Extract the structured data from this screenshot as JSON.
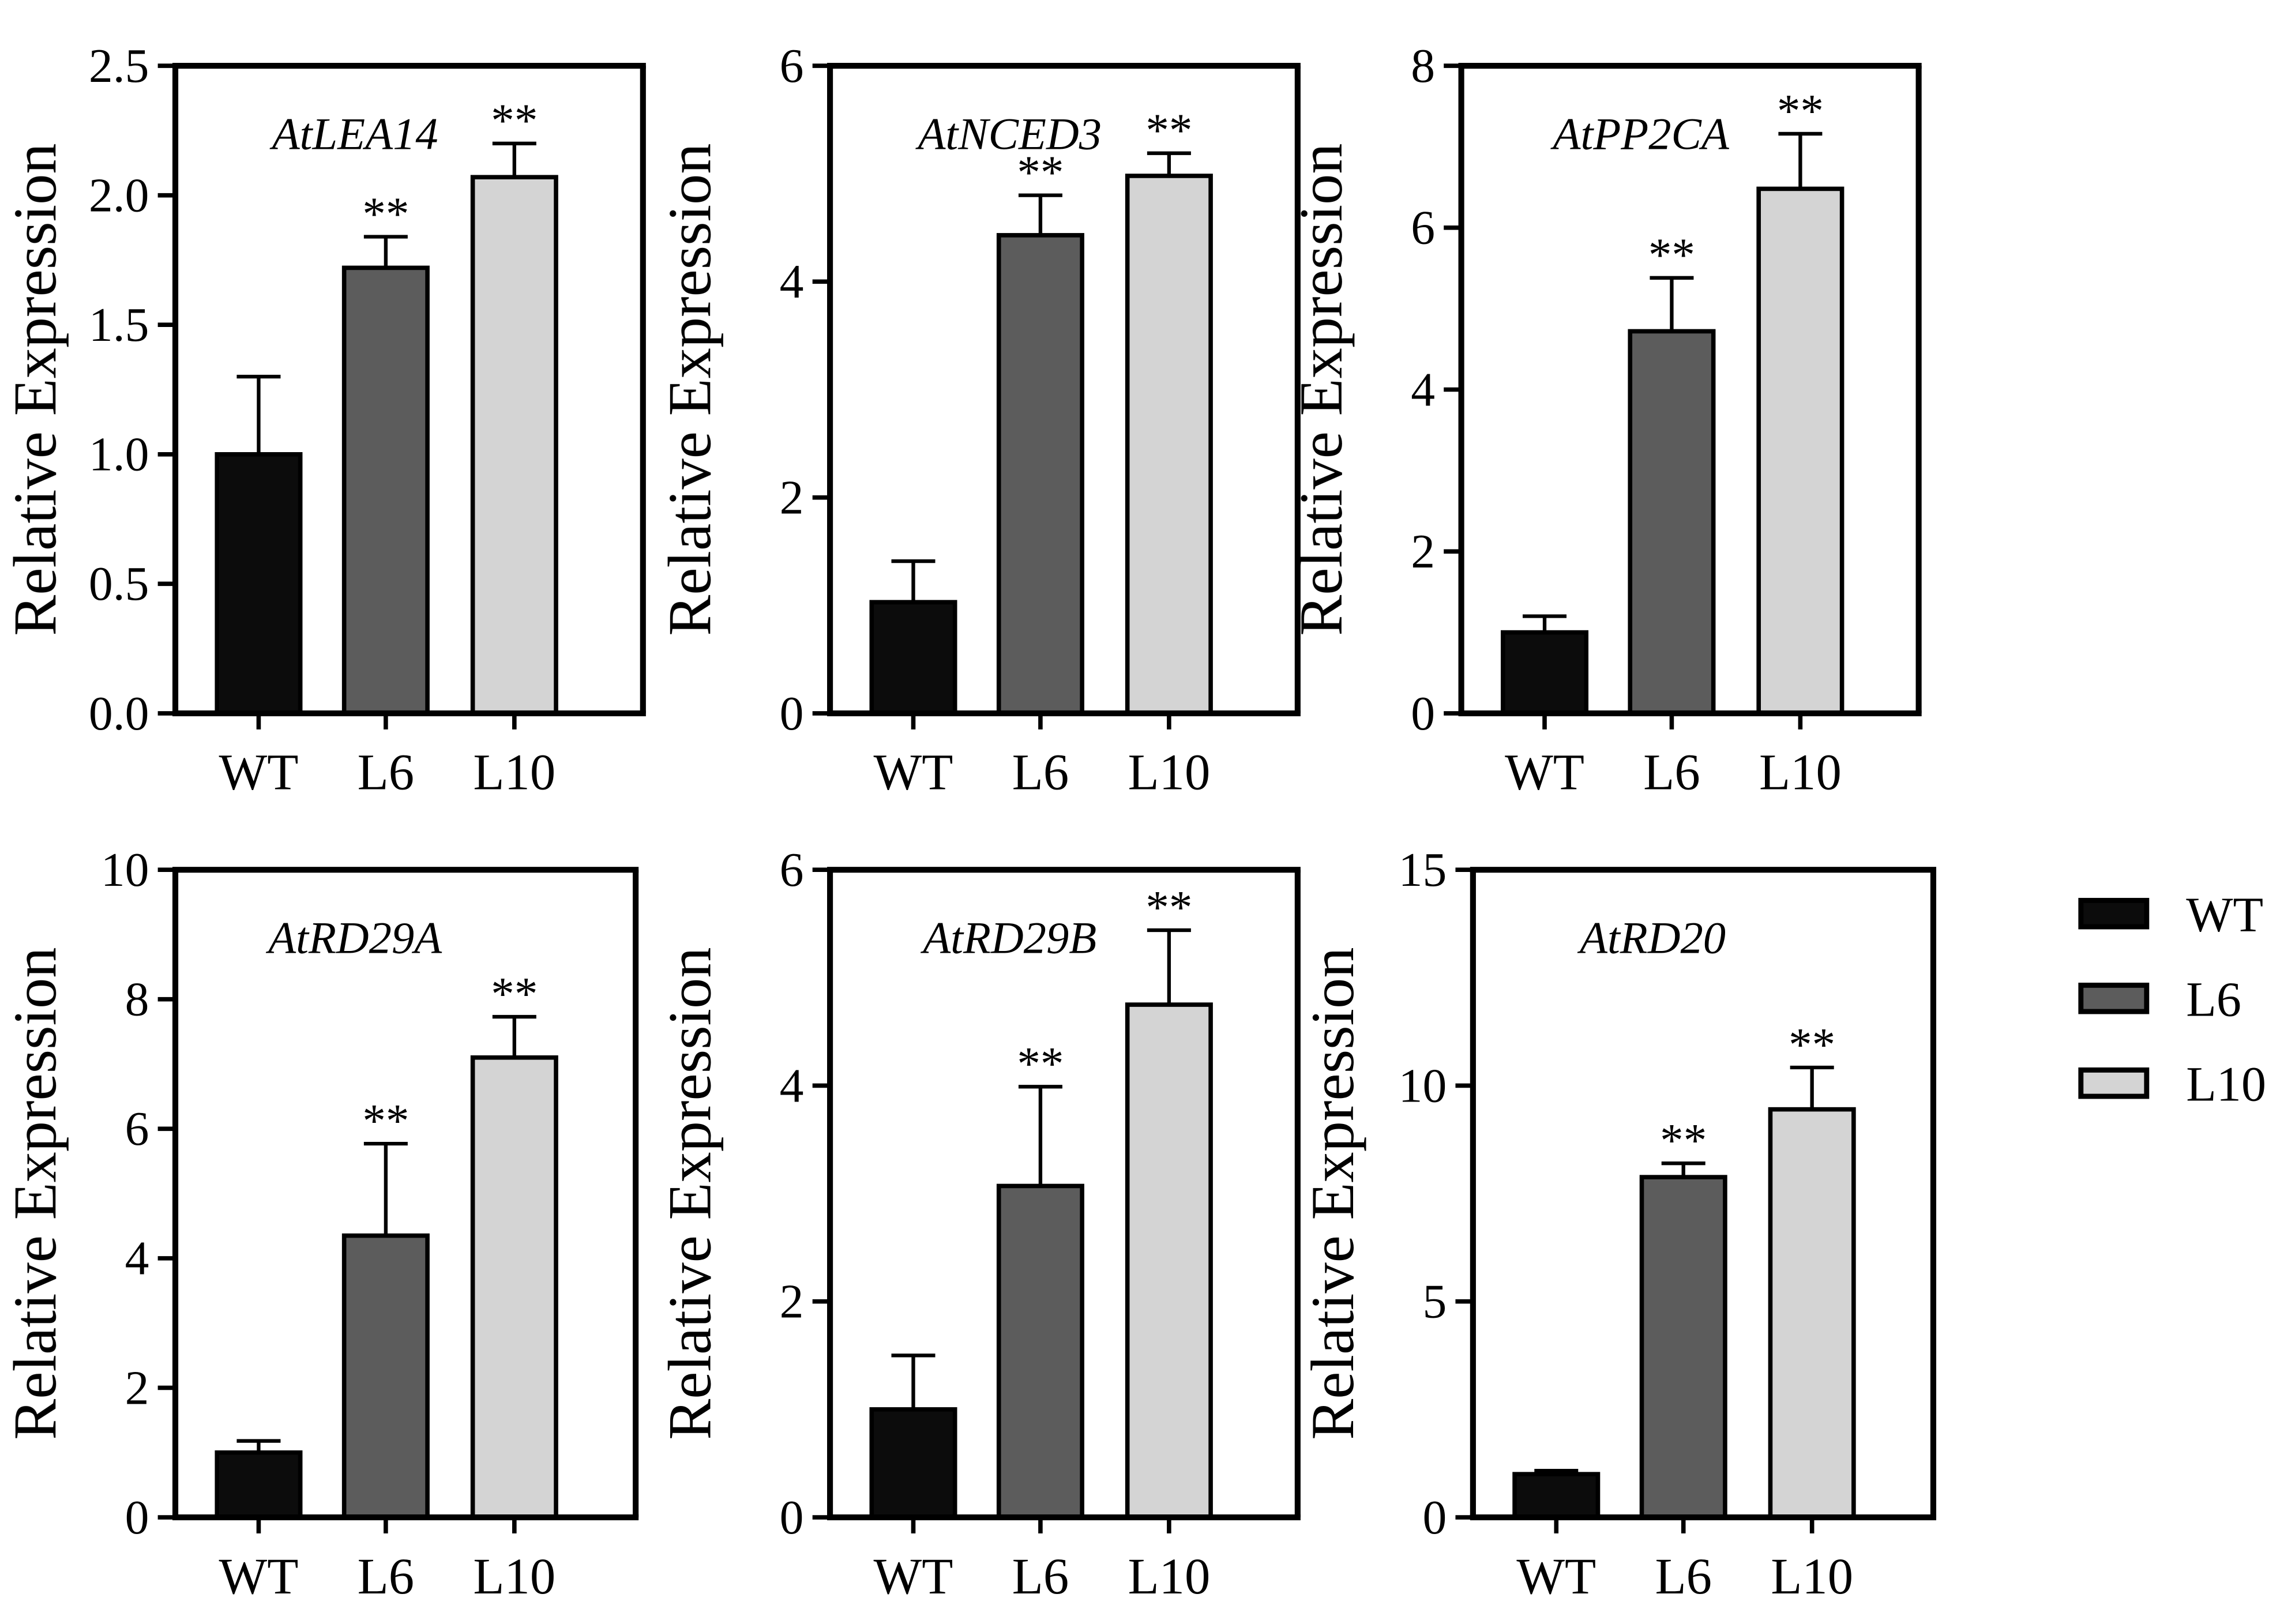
{
  "chart_data": [
    {
      "type": "bar",
      "title": "AtLEA14",
      "ylabel": "Relative Expression",
      "categories": [
        "WT",
        "L6",
        "L10"
      ],
      "values": [
        1.0,
        1.72,
        2.07
      ],
      "errors": [
        0.3,
        0.12,
        0.13
      ],
      "significance": [
        "",
        "**",
        "**"
      ],
      "ylim": [
        0,
        2.5
      ],
      "yticks": [
        0,
        0.5,
        1.0,
        1.5,
        2.0,
        2.5
      ],
      "ytick_labels": [
        "0.0",
        "0.5",
        "1.0",
        "1.5",
        "2.0",
        "2.5"
      ]
    },
    {
      "type": "bar",
      "title": "AtNCED3",
      "ylabel": "Relative Expression",
      "categories": [
        "WT",
        "L6",
        "L10"
      ],
      "values": [
        1.03,
        4.43,
        4.98
      ],
      "errors": [
        0.38,
        0.37,
        0.21
      ],
      "significance": [
        "",
        "**",
        "**"
      ],
      "ylim": [
        0,
        6
      ],
      "yticks": [
        0,
        2,
        4,
        6
      ],
      "ytick_labels": [
        "0",
        "2",
        "4",
        "6"
      ]
    },
    {
      "type": "bar",
      "title": "AtPP2CA",
      "ylabel": "Relative Expression",
      "categories": [
        "WT",
        "L6",
        "L10"
      ],
      "values": [
        1.0,
        4.72,
        6.48
      ],
      "errors": [
        0.2,
        0.66,
        0.68
      ],
      "significance": [
        "",
        "**",
        "**"
      ],
      "ylim": [
        0,
        8
      ],
      "yticks": [
        0,
        2,
        4,
        6,
        8
      ],
      "ytick_labels": [
        "0",
        "2",
        "4",
        "6",
        "8"
      ]
    },
    {
      "type": "bar",
      "title": "AtRD29A",
      "ylabel": "Relative Expression",
      "categories": [
        "WT",
        "L6",
        "L10"
      ],
      "values": [
        1.0,
        4.35,
        7.1
      ],
      "errors": [
        0.18,
        1.42,
        0.63
      ],
      "significance": [
        "",
        "**",
        "**"
      ],
      "ylim": [
        0,
        10
      ],
      "yticks": [
        0,
        2,
        4,
        6,
        8,
        10
      ],
      "ytick_labels": [
        "0",
        "2",
        "4",
        "6",
        "8",
        "10"
      ]
    },
    {
      "type": "bar",
      "title": "AtRD29B",
      "ylabel": "Relative Expression",
      "categories": [
        "WT",
        "L6",
        "L10"
      ],
      "values": [
        1.0,
        3.07,
        4.75
      ],
      "errors": [
        0.5,
        0.92,
        0.69
      ],
      "significance": [
        "",
        "**",
        "**"
      ],
      "ylim": [
        0,
        6
      ],
      "yticks": [
        0,
        2,
        4,
        6
      ],
      "ytick_labels": [
        "0",
        "2",
        "4",
        "6"
      ]
    },
    {
      "type": "bar",
      "title": "AtRD20",
      "ylabel": "Relative Expression",
      "categories": [
        "WT",
        "L6",
        "L10"
      ],
      "values": [
        1.0,
        7.88,
        9.45
      ],
      "errors": [
        0.08,
        0.32,
        0.97
      ],
      "significance": [
        "",
        "**",
        "**"
      ],
      "ylim": [
        0,
        15
      ],
      "yticks": [
        0,
        5,
        10,
        15
      ],
      "ytick_labels": [
        "0",
        "5",
        "10",
        "15"
      ]
    }
  ],
  "legend": {
    "position": "right",
    "items": [
      {
        "label": "WT",
        "color": "#0c0c0c"
      },
      {
        "label": "L6",
        "color": "#5c5c5c"
      },
      {
        "label": "L10",
        "color": "#d4d4d4"
      }
    ]
  },
  "colors": {
    "WT": "#0c0c0c",
    "L6": "#5c5c5c",
    "L10": "#d4d4d4"
  }
}
